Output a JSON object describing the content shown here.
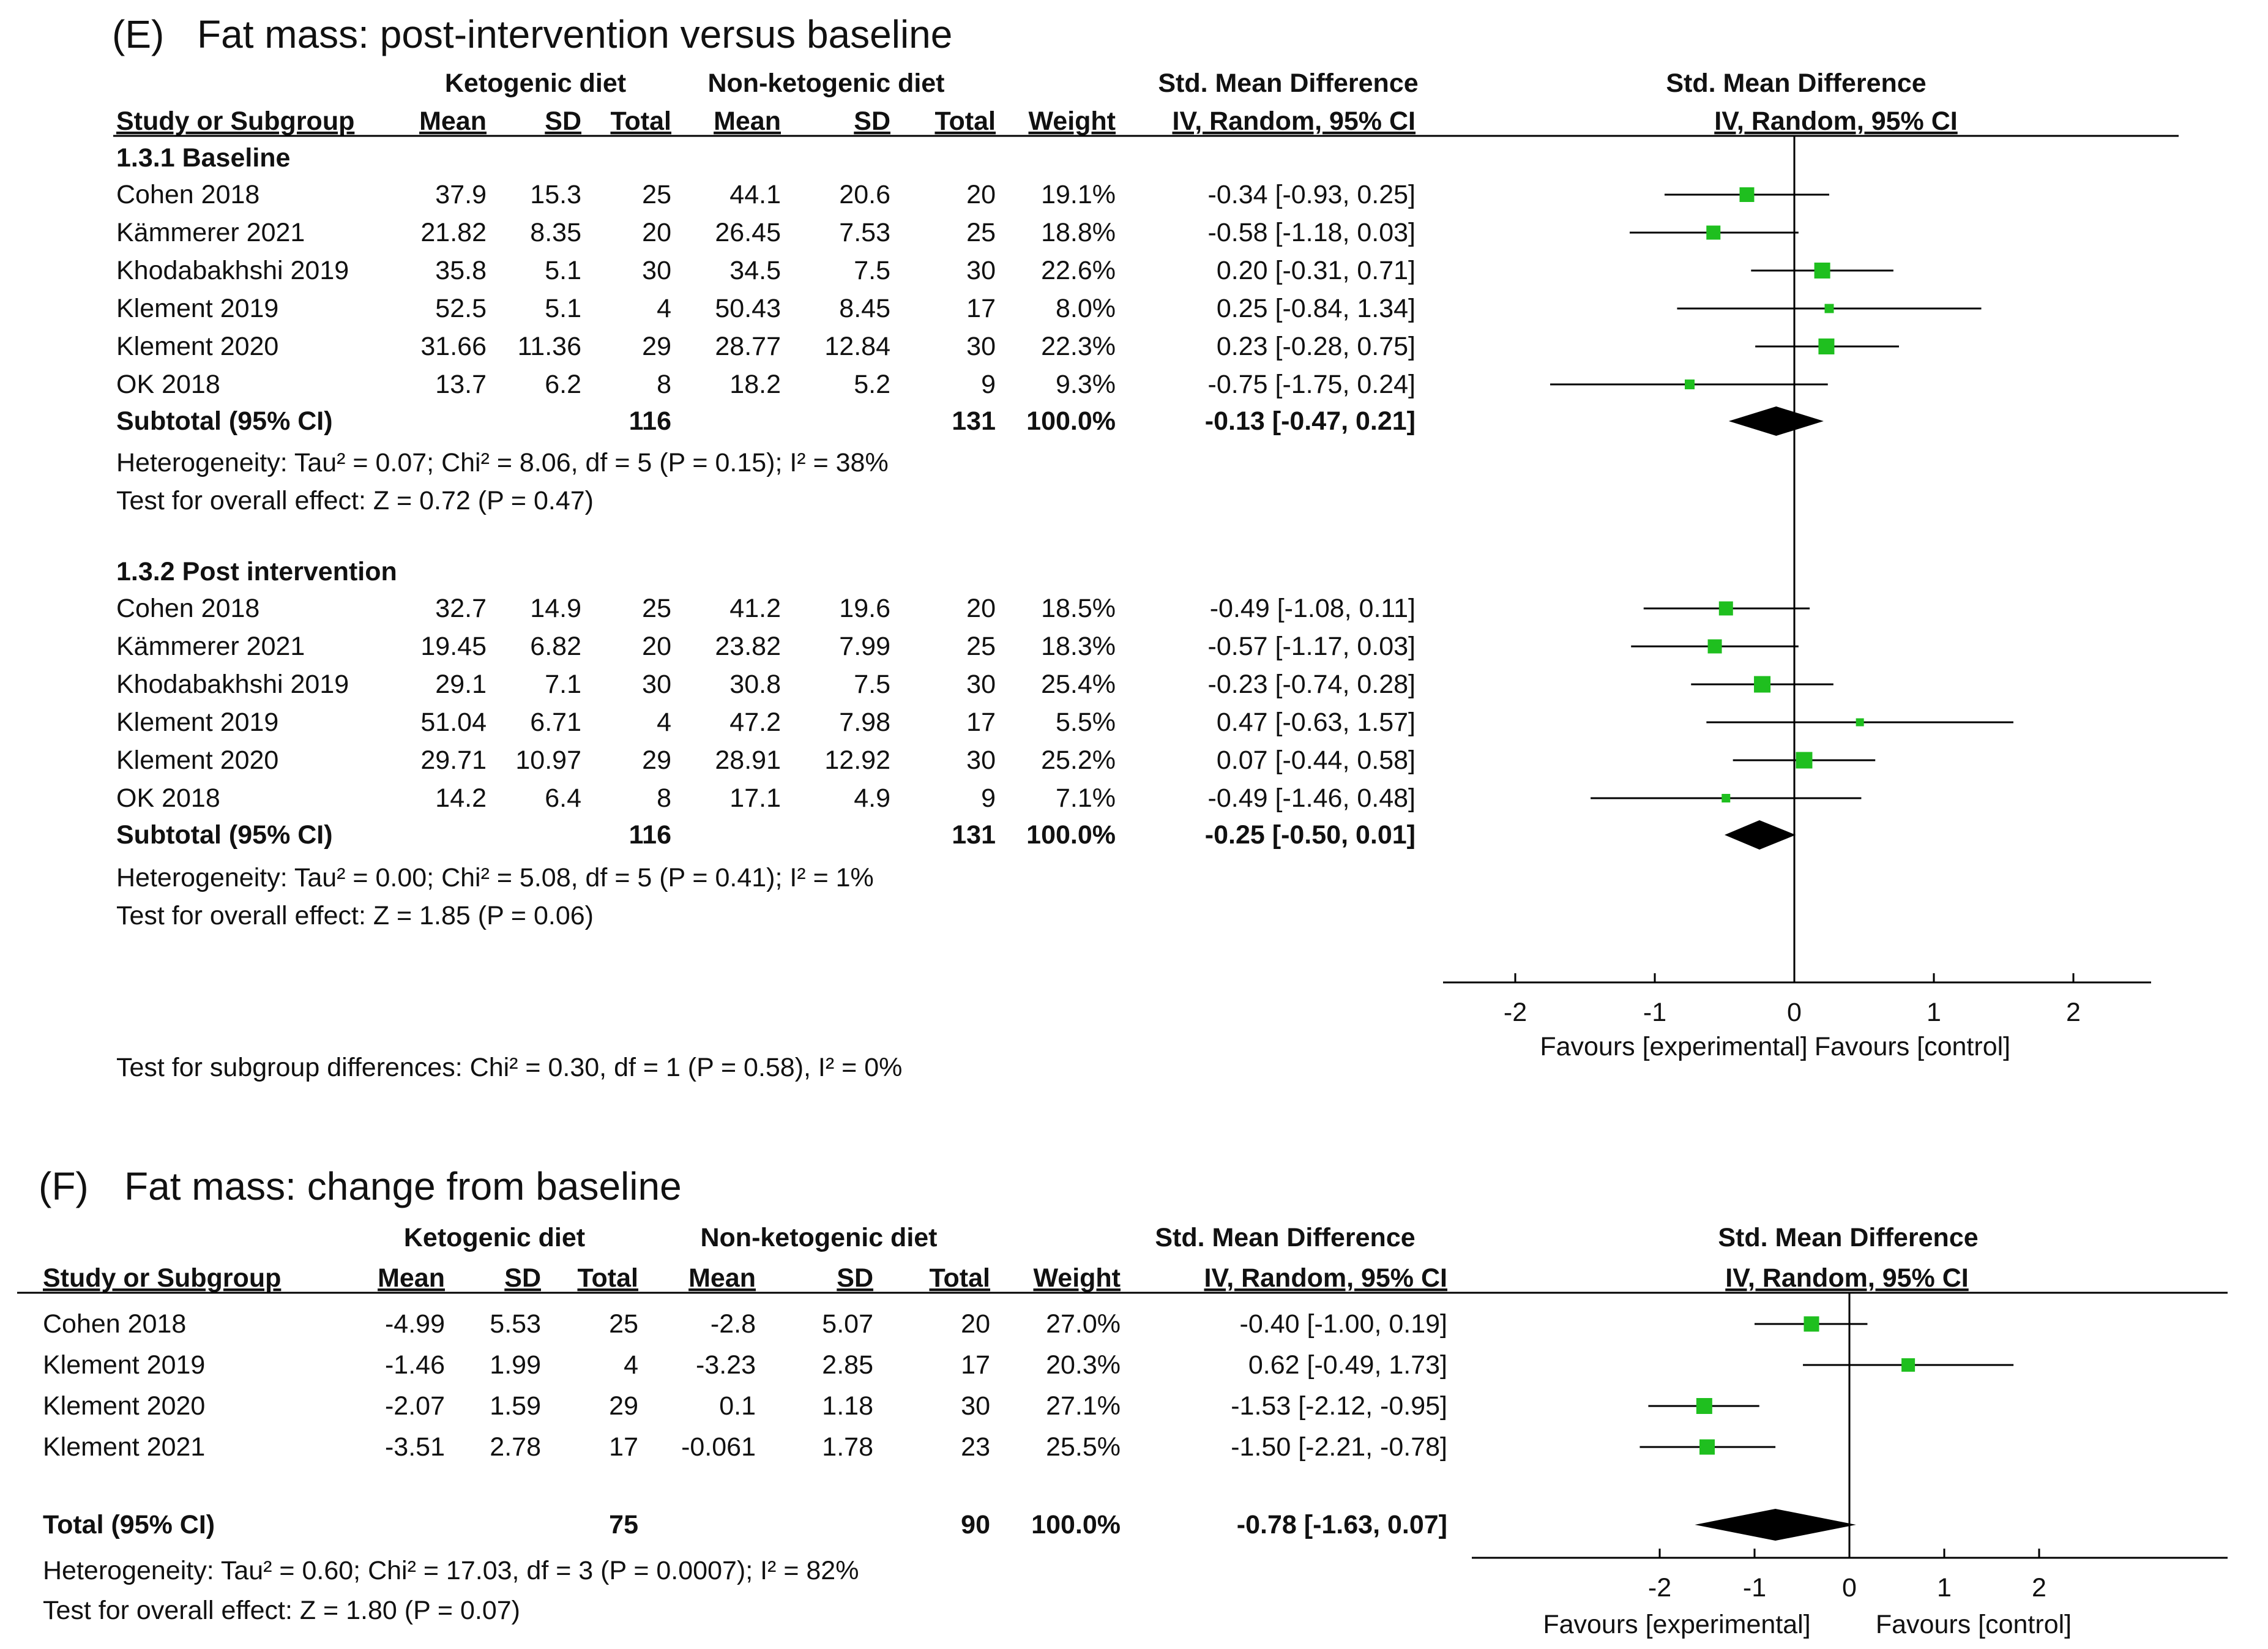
{
  "panel_e": {
    "title_prefix": "(E)",
    "title": "Fat mass: post-intervention versus baseline",
    "headers": {
      "group1": "Ketogenic diet",
      "group2": "Non-ketogenic diet",
      "smd_top": "Std. Mean Difference",
      "study": "Study or Subgroup",
      "mean1": "Mean",
      "sd1": "SD",
      "total1": "Total",
      "mean2": "Mean",
      "sd2": "SD",
      "total2": "Total",
      "weight": "Weight",
      "ci": "IV, Random, 95% CI",
      "plot_top": "Std. Mean Difference",
      "plot_sub": "IV, Random, 95% CI"
    },
    "subgroups": [
      {
        "name": "1.3.1 Baseline",
        "rows": [
          {
            "study": "Cohen 2018",
            "m1": "37.9",
            "sd1": "15.3",
            "n1": "25",
            "m2": "44.1",
            "sd2": "20.6",
            "n2": "20",
            "w": "19.1%",
            "ci": "-0.34 [-0.93, 0.25]"
          },
          {
            "study": "Kämmerer 2021",
            "m1": "21.82",
            "sd1": "8.35",
            "n1": "20",
            "m2": "26.45",
            "sd2": "7.53",
            "n2": "25",
            "w": "18.8%",
            "ci": "-0.58 [-1.18, 0.03]"
          },
          {
            "study": "Khodabakhshi 2019",
            "m1": "35.8",
            "sd1": "5.1",
            "n1": "30",
            "m2": "34.5",
            "sd2": "7.5",
            "n2": "30",
            "w": "22.6%",
            "ci": "0.20 [-0.31, 0.71]"
          },
          {
            "study": "Klement 2019",
            "m1": "52.5",
            "sd1": "5.1",
            "n1": "4",
            "m2": "50.43",
            "sd2": "8.45",
            "n2": "17",
            "w": "8.0%",
            "ci": "0.25 [-0.84, 1.34]"
          },
          {
            "study": "Klement 2020",
            "m1": "31.66",
            "sd1": "11.36",
            "n1": "29",
            "m2": "28.77",
            "sd2": "12.84",
            "n2": "30",
            "w": "22.3%",
            "ci": "0.23 [-0.28, 0.75]"
          },
          {
            "study": "OK 2018",
            "m1": "13.7",
            "sd1": "6.2",
            "n1": "8",
            "m2": "18.2",
            "sd2": "5.2",
            "n2": "9",
            "w": "9.3%",
            "ci": "-0.75 [-1.75, 0.24]"
          }
        ],
        "subtotal": {
          "label": "Subtotal (95% CI)",
          "n1": "116",
          "n2": "131",
          "w": "100.0%",
          "ci": "-0.13 [-0.47, 0.21]"
        },
        "heterogeneity": "Heterogeneity: Tau² = 0.07; Chi² = 8.06, df = 5 (P = 0.15); I² = 38%",
        "overall": "Test for overall effect: Z = 0.72 (P = 0.47)"
      },
      {
        "name": "1.3.2 Post intervention",
        "rows": [
          {
            "study": "Cohen 2018",
            "m1": "32.7",
            "sd1": "14.9",
            "n1": "25",
            "m2": "41.2",
            "sd2": "19.6",
            "n2": "20",
            "w": "18.5%",
            "ci": "-0.49 [-1.08, 0.11]"
          },
          {
            "study": "Kämmerer 2021",
            "m1": "19.45",
            "sd1": "6.82",
            "n1": "20",
            "m2": "23.82",
            "sd2": "7.99",
            "n2": "25",
            "w": "18.3%",
            "ci": "-0.57 [-1.17, 0.03]"
          },
          {
            "study": "Khodabakhshi 2019",
            "m1": "29.1",
            "sd1": "7.1",
            "n1": "30",
            "m2": "30.8",
            "sd2": "7.5",
            "n2": "30",
            "w": "25.4%",
            "ci": "-0.23 [-0.74, 0.28]"
          },
          {
            "study": "Klement 2019",
            "m1": "51.04",
            "sd1": "6.71",
            "n1": "4",
            "m2": "47.2",
            "sd2": "7.98",
            "n2": "17",
            "w": "5.5%",
            "ci": "0.47 [-0.63, 1.57]"
          },
          {
            "study": "Klement 2020",
            "m1": "29.71",
            "sd1": "10.97",
            "n1": "29",
            "m2": "28.91",
            "sd2": "12.92",
            "n2": "30",
            "w": "25.2%",
            "ci": "0.07 [-0.44, 0.58]"
          },
          {
            "study": "OK 2018",
            "m1": "14.2",
            "sd1": "6.4",
            "n1": "8",
            "m2": "17.1",
            "sd2": "4.9",
            "n2": "9",
            "w": "7.1%",
            "ci": "-0.49 [-1.46, 0.48]"
          }
        ],
        "subtotal": {
          "label": "Subtotal (95% CI)",
          "n1": "116",
          "n2": "131",
          "w": "100.0%",
          "ci": "-0.25 [-0.50, 0.01]"
        },
        "heterogeneity": "Heterogeneity: Tau² = 0.00; Chi² = 5.08, df = 5 (P = 0.41); I² = 1%",
        "overall": "Test for overall effect: Z = 1.85 (P = 0.06)"
      }
    ],
    "subgroup_test": "Test for subgroup differences: Chi² = 0.30, df = 1 (P = 0.58), I² = 0%",
    "axis_ticks": [
      "-2",
      "-1",
      "0",
      "1",
      "2"
    ],
    "favours_left": "Favours [experimental]",
    "favours_right": "Favours [control]"
  },
  "panel_f": {
    "title_prefix": "(F)",
    "title": "Fat mass: change from baseline",
    "headers": {
      "group1": "Ketogenic diet",
      "group2": "Non-ketogenic diet",
      "smd_top": "Std. Mean Difference",
      "study": "Study or Subgroup",
      "mean1": "Mean",
      "sd1": "SD",
      "total1": "Total",
      "mean2": "Mean",
      "sd2": "SD",
      "total2": "Total",
      "weight": "Weight",
      "ci": "IV, Random, 95% CI",
      "plot_top": "Std. Mean Difference",
      "plot_sub": "IV, Random, 95% CI"
    },
    "rows": [
      {
        "study": "Cohen 2018",
        "m1": "-4.99",
        "sd1": "5.53",
        "n1": "25",
        "m2": "-2.8",
        "sd2": "5.07",
        "n2": "20",
        "w": "27.0%",
        "ci": "-0.40 [-1.00, 0.19]"
      },
      {
        "study": "Klement 2019",
        "m1": "-1.46",
        "sd1": "1.99",
        "n1": "4",
        "m2": "-3.23",
        "sd2": "2.85",
        "n2": "17",
        "w": "20.3%",
        "ci": "0.62 [-0.49, 1.73]"
      },
      {
        "study": "Klement 2020",
        "m1": "-2.07",
        "sd1": "1.59",
        "n1": "29",
        "m2": "0.1",
        "sd2": "1.18",
        "n2": "30",
        "w": "27.1%",
        "ci": "-1.53 [-2.12, -0.95]"
      },
      {
        "study": "Klement 2021",
        "m1": "-3.51",
        "sd1": "2.78",
        "n1": "17",
        "m2": "-0.061",
        "sd2": "1.78",
        "n2": "23",
        "w": "25.5%",
        "ci": "-1.50 [-2.21, -0.78]"
      }
    ],
    "total": {
      "label": "Total (95% CI)",
      "n1": "75",
      "n2": "90",
      "w": "100.0%",
      "ci": "-0.78 [-1.63, 0.07]"
    },
    "heterogeneity": "Heterogeneity: Tau² = 0.60; Chi² = 17.03, df = 3 (P = 0.0007); I² = 82%",
    "overall": "Test for overall effect: Z = 1.80 (P = 0.07)",
    "axis_ticks": [
      "-2",
      "-1",
      "0",
      "1",
      "2"
    ],
    "favours_left": "Favours [experimental]",
    "favours_right": "Favours [control]"
  },
  "colors": {
    "marker": "#1fbf1f",
    "diamond": "#000000",
    "line": "#000000"
  },
  "chart_data": [
    {
      "type": "forest",
      "title": "Fat mass: post-intervention versus baseline",
      "xlabel": "Std. Mean Difference, IV, Random, 95% CI",
      "xlim": [
        -2.5,
        2.6
      ],
      "xticks": [
        -2,
        -1,
        0,
        1,
        2
      ],
      "series": [
        {
          "name": "1.3.1 Baseline",
          "studies": [
            {
              "study": "Cohen 2018",
              "est": -0.34,
              "lo": -0.93,
              "hi": 0.25,
              "weight": 19.1
            },
            {
              "study": "Kämmerer 2021",
              "est": -0.58,
              "lo": -1.18,
              "hi": 0.03,
              "weight": 18.8
            },
            {
              "study": "Khodabakhshi 2019",
              "est": 0.2,
              "lo": -0.31,
              "hi": 0.71,
              "weight": 22.6
            },
            {
              "study": "Klement 2019",
              "est": 0.25,
              "lo": -0.84,
              "hi": 1.34,
              "weight": 8.0
            },
            {
              "study": "Klement 2020",
              "est": 0.23,
              "lo": -0.28,
              "hi": 0.75,
              "weight": 22.3
            },
            {
              "study": "OK 2018",
              "est": -0.75,
              "lo": -1.75,
              "hi": 0.24,
              "weight": 9.3
            }
          ],
          "pooled": {
            "est": -0.13,
            "lo": -0.47,
            "hi": 0.21
          }
        },
        {
          "name": "1.3.2 Post intervention",
          "studies": [
            {
              "study": "Cohen 2018",
              "est": -0.49,
              "lo": -1.08,
              "hi": 0.11,
              "weight": 18.5
            },
            {
              "study": "Kämmerer 2021",
              "est": -0.57,
              "lo": -1.17,
              "hi": 0.03,
              "weight": 18.3
            },
            {
              "study": "Khodabakhshi 2019",
              "est": -0.23,
              "lo": -0.74,
              "hi": 0.28,
              "weight": 25.4
            },
            {
              "study": "Klement 2019",
              "est": 0.47,
              "lo": -0.63,
              "hi": 1.57,
              "weight": 5.5
            },
            {
              "study": "Klement 2020",
              "est": 0.07,
              "lo": -0.44,
              "hi": 0.58,
              "weight": 25.2
            },
            {
              "study": "OK 2018",
              "est": -0.49,
              "lo": -1.46,
              "hi": 0.48,
              "weight": 7.1
            }
          ],
          "pooled": {
            "est": -0.25,
            "lo": -0.5,
            "hi": 0.01
          }
        }
      ]
    },
    {
      "type": "forest",
      "title": "Fat mass: change from baseline",
      "xlabel": "Std. Mean Difference, IV, Random, 95% CI",
      "xlim": [
        -4,
        4
      ],
      "xticks": [
        -2,
        -1,
        0,
        1,
        2
      ],
      "series": [
        {
          "name": "Total",
          "studies": [
            {
              "study": "Cohen 2018",
              "est": -0.4,
              "lo": -1.0,
              "hi": 0.19,
              "weight": 27.0
            },
            {
              "study": "Klement 2019",
              "est": 0.62,
              "lo": -0.49,
              "hi": 1.73,
              "weight": 20.3
            },
            {
              "study": "Klement 2020",
              "est": -1.53,
              "lo": -2.12,
              "hi": -0.95,
              "weight": 27.1
            },
            {
              "study": "Klement 2021",
              "est": -1.5,
              "lo": -2.21,
              "hi": -0.78,
              "weight": 25.5
            }
          ],
          "pooled": {
            "est": -0.78,
            "lo": -1.63,
            "hi": 0.07
          }
        }
      ]
    }
  ]
}
